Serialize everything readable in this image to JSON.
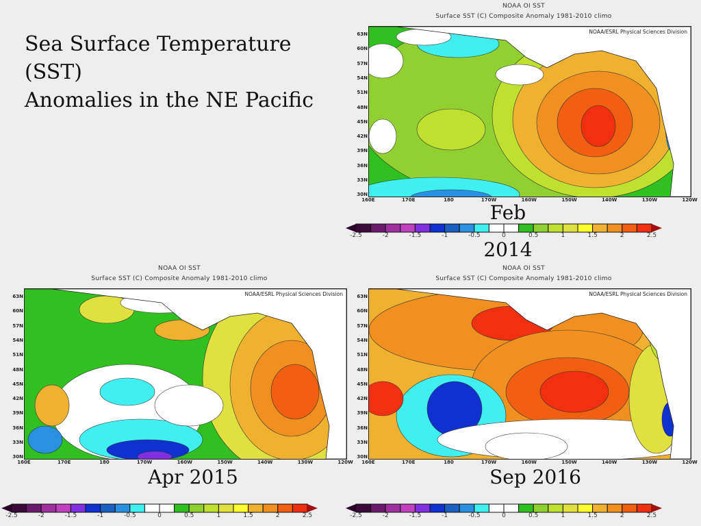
{
  "slide_title": [
    "Sea Surface Temperature",
    "(SST)",
    "Anomalies in the NE Pacific"
  ],
  "map_common": {
    "title": "NOAA OI SST",
    "subtitle": "Surface SST (C) Composite Anomaly 1981-2010 climo",
    "credit": "NOAA/ESRL Physical Sciences Division",
    "lat_labels": [
      "63N",
      "60N",
      "57N",
      "54N",
      "51N",
      "48N",
      "45N",
      "42N",
      "39N",
      "36N",
      "33N",
      "30N"
    ],
    "lon_labels": [
      "160E",
      "170E",
      "180",
      "170W",
      "160W",
      "150W",
      "140W",
      "130W",
      "120W"
    ]
  },
  "panels": [
    {
      "caption_line1": "Feb",
      "caption_line2": "2014",
      "period": "Feb 2014"
    },
    {
      "caption_line1": "Apr 2015",
      "caption_line2": "",
      "period": "Apr 2015"
    },
    {
      "caption_line1": "Sep 2016",
      "caption_line2": "",
      "period": "Sep 2016"
    }
  ],
  "colorbar": {
    "labels": [
      "-2.5",
      "-2",
      "-1.5",
      "-1",
      "-0.5",
      "0",
      "0.5",
      "1",
      "1.5",
      "2",
      "2.5"
    ],
    "colors": [
      "#3a0a3a",
      "#6a1a6a",
      "#a030a0",
      "#c040c0",
      "#8030e0",
      "#1030d0",
      "#1a60c0",
      "#2a90e0",
      "#40f0f0",
      "#ffffff",
      "#ffffff",
      "#30c020",
      "#90d030",
      "#c0e030",
      "#e0e040",
      "#ffff30",
      "#f0b030",
      "#f09020",
      "#f06010",
      "#f03010"
    ],
    "low_arrow_color": "#2a002a",
    "high_arrow_color": "#a01010"
  }
}
